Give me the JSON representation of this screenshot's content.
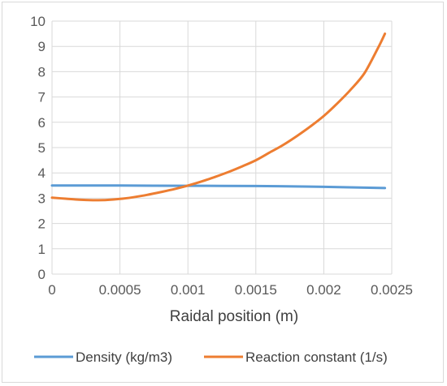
{
  "chart_data": {
    "type": "line",
    "title": "",
    "xlabel": "Raidal position (m)",
    "ylabel": "",
    "xlim": [
      0,
      0.0025
    ],
    "ylim": [
      0,
      10
    ],
    "x_ticks": [
      "0",
      "0.0005",
      "0.001",
      "0.0015",
      "0.002",
      "0.0025"
    ],
    "y_ticks": [
      "0",
      "1",
      "2",
      "3",
      "4",
      "5",
      "6",
      "7",
      "8",
      "9",
      "10"
    ],
    "grid": true,
    "legend_position": "bottom",
    "series": [
      {
        "name": "Density (kg/m3)",
        "color": "#5b9bd5",
        "x": [
          0,
          0.0005,
          0.001,
          0.0015,
          0.002,
          0.00245
        ],
        "y": [
          3.5,
          3.5,
          3.49,
          3.48,
          3.45,
          3.4
        ]
      },
      {
        "name": "Reaction constant (1/s)",
        "color": "#ed7d31",
        "x": [
          0,
          0.0001,
          0.0002,
          0.0003,
          0.0004,
          0.0005,
          0.0006,
          0.0007,
          0.0008,
          0.0009,
          0.001,
          0.0011,
          0.0012,
          0.0013,
          0.0014,
          0.0015,
          0.0016,
          0.0017,
          0.0018,
          0.0019,
          0.002,
          0.0021,
          0.0022,
          0.0023,
          0.0024,
          0.00245
        ],
        "y": [
          3.02,
          2.98,
          2.94,
          2.92,
          2.93,
          2.97,
          3.04,
          3.13,
          3.24,
          3.36,
          3.5,
          3.66,
          3.84,
          4.04,
          4.26,
          4.5,
          4.8,
          5.1,
          5.45,
          5.83,
          6.25,
          6.75,
          7.3,
          7.95,
          8.95,
          9.5
        ]
      }
    ]
  }
}
